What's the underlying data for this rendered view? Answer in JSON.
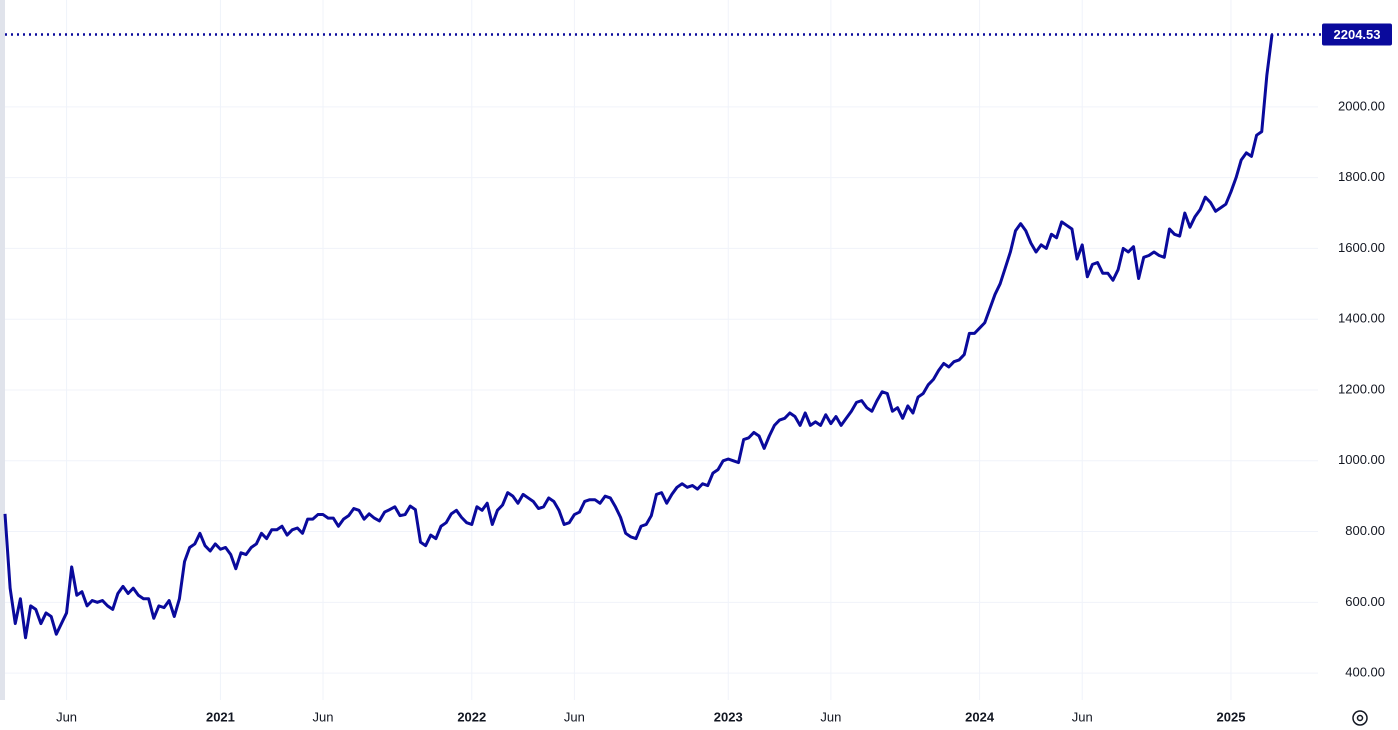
{
  "chart_data": {
    "type": "line",
    "categories": [
      null,
      null,
      null,
      null,
      null,
      null,
      null,
      null,
      null,
      null,
      null,
      null,
      "Jun",
      null,
      null,
      null,
      null,
      null,
      null,
      null,
      null,
      null,
      null,
      null,
      null,
      null,
      null,
      null,
      null,
      null,
      null,
      null,
      null,
      null,
      null,
      null,
      null,
      null,
      null,
      null,
      null,
      null,
      "2021",
      null,
      null,
      null,
      null,
      null,
      null,
      null,
      null,
      null,
      null,
      null,
      null,
      null,
      null,
      null,
      null,
      null,
      null,
      null,
      "Jun",
      null,
      null,
      null,
      null,
      null,
      null,
      null,
      null,
      null,
      null,
      null,
      null,
      null,
      null,
      null,
      null,
      null,
      null,
      null,
      null,
      null,
      null,
      null,
      null,
      null,
      null,
      null,
      null,
      "2022",
      null,
      null,
      null,
      null,
      null,
      null,
      null,
      null,
      null,
      null,
      null,
      null,
      null,
      null,
      null,
      null,
      null,
      null,
      null,
      "Jun",
      null,
      null,
      null,
      null,
      null,
      null,
      null,
      null,
      null,
      null,
      null,
      null,
      null,
      null,
      null,
      null,
      null,
      null,
      null,
      null,
      null,
      null,
      null,
      null,
      null,
      null,
      null,
      null,
      null,
      "2023",
      null,
      null,
      null,
      null,
      null,
      null,
      null,
      null,
      null,
      null,
      null,
      null,
      null,
      null,
      null,
      null,
      null,
      null,
      null,
      "Jun",
      null,
      null,
      null,
      null,
      null,
      null,
      null,
      null,
      null,
      null,
      null,
      null,
      null,
      null,
      null,
      null,
      null,
      null,
      null,
      null,
      null,
      null,
      null,
      null,
      null,
      null,
      null,
      null,
      "2024",
      null,
      null,
      null,
      null,
      null,
      null,
      null,
      null,
      null,
      null,
      null,
      null,
      null,
      null,
      null,
      null,
      null,
      null,
      null,
      "Jun",
      null,
      null,
      null,
      null,
      null,
      null,
      null,
      null,
      null,
      null,
      null,
      null,
      null,
      null,
      null,
      null,
      null,
      null,
      null,
      null,
      null,
      null,
      null,
      null,
      null,
      null,
      null,
      null,
      "2025",
      null,
      null,
      null,
      null,
      null,
      null,
      null,
      null
    ],
    "series": [
      {
        "color": "#0a0a9c",
        "values": [
          850,
          640,
          540,
          610,
          500,
          590,
          580,
          540,
          570,
          560,
          510,
          540,
          570,
          700,
          620,
          630,
          590,
          605,
          600,
          605,
          590,
          580,
          625,
          645,
          625,
          640,
          620,
          610,
          610,
          555,
          590,
          585,
          605,
          560,
          610,
          715,
          755,
          765,
          795,
          760,
          745,
          765,
          750,
          755,
          735,
          695,
          740,
          735,
          755,
          765,
          795,
          780,
          805,
          805,
          815,
          790,
          805,
          810,
          795,
          835,
          835,
          848,
          848,
          838,
          838,
          815,
          835,
          845,
          865,
          860,
          835,
          850,
          838,
          830,
          855,
          862,
          870,
          845,
          848,
          872,
          862,
          770,
          760,
          790,
          780,
          815,
          825,
          850,
          860,
          840,
          825,
          820,
          870,
          860,
          880,
          820,
          860,
          875,
          910,
          900,
          880,
          905,
          895,
          885,
          865,
          870,
          895,
          885,
          860,
          820,
          825,
          848,
          855,
          885,
          890,
          890,
          880,
          900,
          895,
          870,
          840,
          795,
          785,
          780,
          815,
          820,
          845,
          905,
          910,
          880,
          905,
          925,
          935,
          925,
          930,
          920,
          935,
          930,
          965,
          975,
          1000,
          1005,
          1000,
          995,
          1060,
          1065,
          1080,
          1070,
          1035,
          1070,
          1100,
          1115,
          1120,
          1135,
          1125,
          1100,
          1135,
          1100,
          1110,
          1100,
          1130,
          1105,
          1125,
          1100,
          1120,
          1140,
          1165,
          1170,
          1150,
          1140,
          1170,
          1195,
          1190,
          1140,
          1150,
          1120,
          1155,
          1135,
          1180,
          1190,
          1215,
          1230,
          1255,
          1275,
          1265,
          1280,
          1285,
          1300,
          1360,
          1360,
          1375,
          1390,
          1430,
          1470,
          1500,
          1545,
          1590,
          1650,
          1670,
          1650,
          1615,
          1590,
          1610,
          1600,
          1640,
          1630,
          1675,
          1665,
          1655,
          1570,
          1610,
          1520,
          1555,
          1560,
          1530,
          1530,
          1510,
          1540,
          1600,
          1590,
          1605,
          1515,
          1575,
          1580,
          1590,
          1580,
          1575,
          1655,
          1640,
          1635,
          1700,
          1660,
          1690,
          1710,
          1745,
          1730,
          1705,
          1715,
          1725,
          1760,
          1800,
          1850,
          1870,
          1860,
          1920,
          1930,
          2090,
          2204.53
        ]
      }
    ],
    "ylim": [
      324,
      2302
    ],
    "yticks": [
      {
        "value": 400,
        "label": "400.00"
      },
      {
        "value": 600,
        "label": "600.00"
      },
      {
        "value": 800,
        "label": "800.00"
      },
      {
        "value": 1000,
        "label": "1000.00"
      },
      {
        "value": 1200,
        "label": "1200.00"
      },
      {
        "value": 1400,
        "label": "1400.00"
      },
      {
        "value": 1600,
        "label": "1600.00"
      },
      {
        "value": 1800,
        "label": "1800.00"
      },
      {
        "value": 2000,
        "label": "2000.00"
      }
    ],
    "grid": true
  }
}
